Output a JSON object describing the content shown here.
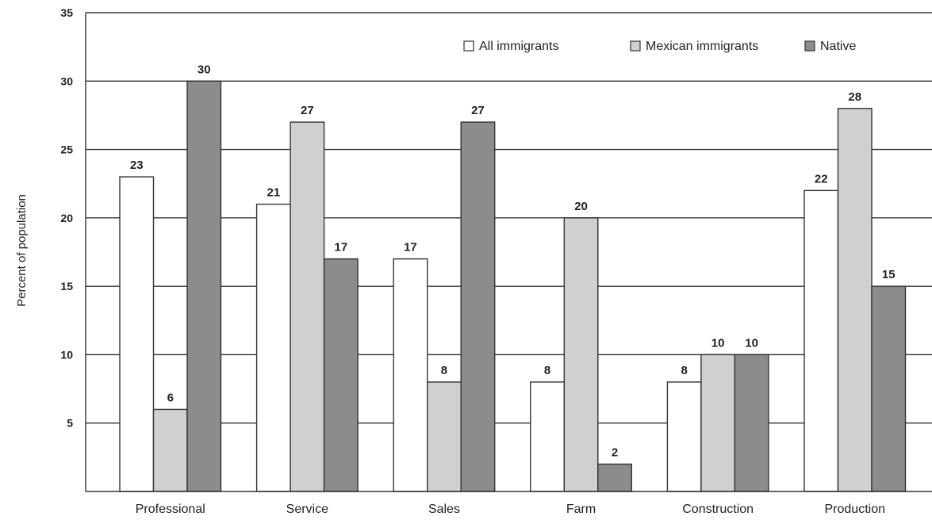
{
  "chart_data": {
    "type": "bar",
    "title": "",
    "xlabel": "",
    "ylabel": "Percent of population",
    "ylim": [
      0,
      35
    ],
    "yticks": [
      5,
      10,
      15,
      20,
      25,
      30,
      35
    ],
    "grid": true,
    "legend_position": "top-right",
    "categories": [
      "Professional",
      "Service",
      "Sales",
      "Farm",
      "Construction",
      "Production"
    ],
    "series": [
      {
        "name": "All immigrants",
        "color": "#ffffff",
        "values": [
          23,
          21,
          17,
          8,
          8,
          22
        ],
        "labels": [
          "23",
          "21",
          "17",
          "8",
          "8",
          "22"
        ]
      },
      {
        "name": "Mexican immigrants",
        "color": "#d0d0d0",
        "values": [
          6,
          27,
          8,
          20,
          10,
          28
        ],
        "labels": [
          "6",
          "27",
          "8",
          "20",
          "10",
          "28"
        ]
      },
      {
        "name": "Native",
        "color": "#8c8c8c",
        "values": [
          30,
          17,
          27,
          2,
          10,
          15
        ],
        "labels": [
          "30",
          "17",
          "27",
          "2",
          "10",
          "15"
        ]
      }
    ]
  }
}
